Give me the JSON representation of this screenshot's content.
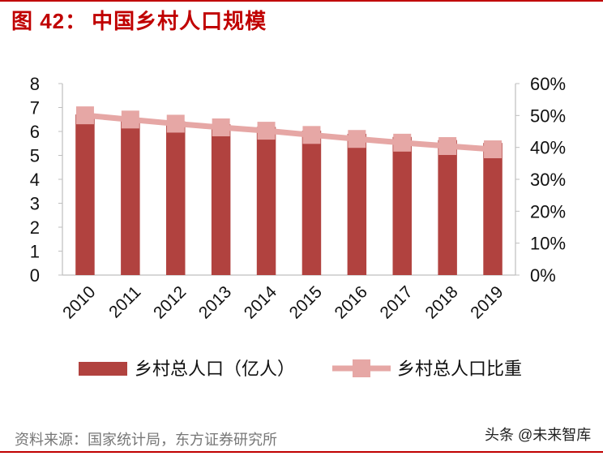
{
  "figure": {
    "label": "图 42：",
    "title": "中国乡村人口规模"
  },
  "chart_data": {
    "type": "bar+line",
    "categories": [
      "2010",
      "2011",
      "2012",
      "2013",
      "2014",
      "2015",
      "2016",
      "2017",
      "2018",
      "2019"
    ],
    "series": [
      {
        "name": "乡村总人口（亿人）",
        "type": "bar",
        "axis": "left",
        "color": "#b1423f",
        "values": [
          6.71,
          6.57,
          6.42,
          6.3,
          6.19,
          6.03,
          5.9,
          5.77,
          5.64,
          5.52
        ]
      },
      {
        "name": "乡村总人口比重",
        "type": "line",
        "axis": "right",
        "color": "#e6a7a5",
        "values": [
          50.05,
          48.73,
          47.43,
          46.27,
          45.23,
          43.9,
          42.65,
          41.48,
          40.42,
          39.4
        ]
      }
    ],
    "left_axis": {
      "min": 0,
      "max": 8,
      "ticks": [
        "0",
        "1",
        "2",
        "3",
        "4",
        "5",
        "6",
        "7",
        "8"
      ]
    },
    "right_axis": {
      "min": 0,
      "max": 60,
      "ticks": [
        "0%",
        "10%",
        "20%",
        "30%",
        "40%",
        "50%",
        "60%"
      ]
    },
    "legend_position": "bottom"
  },
  "source": "资料来源：国家统计局，东方证券研究所",
  "watermark": "头条 @未来智库"
}
